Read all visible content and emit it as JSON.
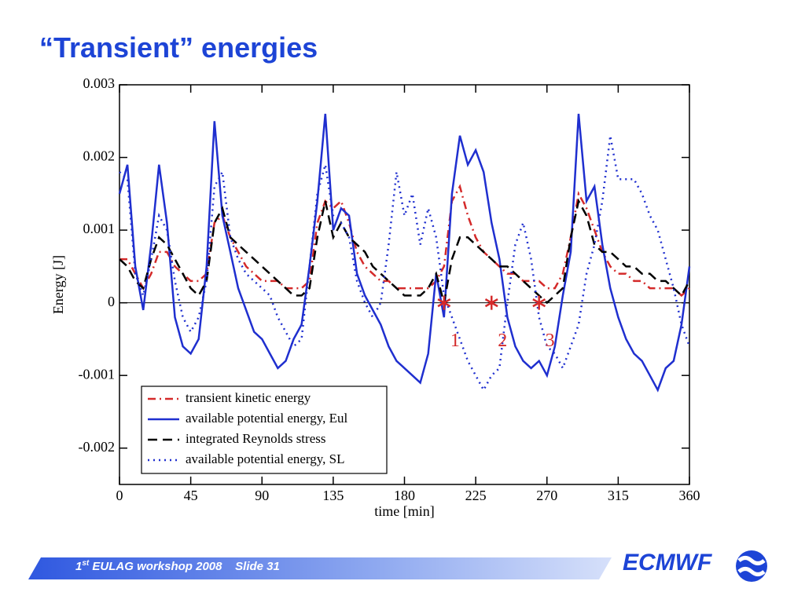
{
  "chart_data": {
    "type": "line",
    "title": "“Transient” energies",
    "xlabel": "time [min]",
    "ylabel": "Energy [J]",
    "xlim": [
      0,
      360
    ],
    "xticks": [
      0,
      45,
      90,
      135,
      180,
      225,
      270,
      315,
      360
    ],
    "ylim": [
      -0.0025,
      0.003
    ],
    "yticks": [
      -0.002,
      -0.001,
      0,
      0.001,
      0.002,
      0.003
    ],
    "zero_line": true,
    "legend": "lower left",
    "x": [
      0,
      5,
      10,
      15,
      20,
      25,
      30,
      35,
      40,
      45,
      50,
      55,
      60,
      65,
      70,
      75,
      80,
      85,
      90,
      95,
      100,
      105,
      110,
      115,
      120,
      125,
      130,
      135,
      140,
      145,
      150,
      155,
      160,
      165,
      170,
      175,
      180,
      185,
      190,
      195,
      200,
      205,
      210,
      215,
      220,
      225,
      230,
      235,
      240,
      245,
      250,
      255,
      260,
      265,
      270,
      275,
      280,
      285,
      290,
      295,
      300,
      305,
      310,
      315,
      320,
      325,
      330,
      335,
      340,
      345,
      350,
      355,
      360
    ],
    "series": [
      {
        "name": "transient kinetic energy",
        "color": "#d42a2a",
        "style": "dashdot",
        "values": [
          0.0006,
          0.0006,
          0.0004,
          0.0002,
          0.0004,
          0.0007,
          0.0007,
          0.0005,
          0.0004,
          0.0003,
          0.0003,
          0.0004,
          0.0011,
          0.0012,
          0.0009,
          0.0007,
          0.0005,
          0.0004,
          0.0003,
          0.0003,
          0.0003,
          0.0002,
          0.0002,
          0.0002,
          0.0003,
          0.0011,
          0.0014,
          0.0013,
          0.0014,
          0.0011,
          0.0007,
          0.0005,
          0.0004,
          0.0003,
          0.0003,
          0.0002,
          0.0002,
          0.0002,
          0.0002,
          0.0002,
          0.0003,
          0.0005,
          0.0014,
          0.0016,
          0.0012,
          0.0009,
          0.0007,
          0.0006,
          0.0005,
          0.0004,
          0.0004,
          0.0003,
          0.0003,
          0.0003,
          0.0002,
          0.0002,
          0.0004,
          0.0009,
          0.0015,
          0.0013,
          0.001,
          0.0007,
          0.0005,
          0.0004,
          0.0004,
          0.0003,
          0.0003,
          0.0002,
          0.0002,
          0.0002,
          0.0002,
          0.0001,
          0.0002
        ]
      },
      {
        "name": "available potential energy, Eul",
        "color": "#1f2fcf",
        "style": "solid",
        "values": [
          0.0015,
          0.0019,
          0.0005,
          -0.0001,
          0.0008,
          0.0019,
          0.0011,
          -0.0002,
          -0.0006,
          -0.0007,
          -0.0005,
          0.0005,
          0.0025,
          0.0012,
          0.0007,
          0.0002,
          -0.0001,
          -0.0004,
          -0.0005,
          -0.0007,
          -0.0009,
          -0.0008,
          -0.0005,
          -0.0003,
          0.0005,
          0.0014,
          0.0026,
          0.001,
          0.0013,
          0.0012,
          0.0004,
          0.0001,
          -0.0001,
          -0.0003,
          -0.0006,
          -0.0008,
          -0.0009,
          -0.001,
          -0.0011,
          -0.0007,
          0.0004,
          -0.0002,
          0.0015,
          0.0023,
          0.0019,
          0.0021,
          0.0018,
          0.0011,
          0.0006,
          -0.0002,
          -0.0006,
          -0.0008,
          -0.0009,
          -0.0008,
          -0.001,
          -0.0006,
          0.0001,
          0.0007,
          0.0026,
          0.0014,
          0.0016,
          0.0008,
          0.0002,
          -0.0002,
          -0.0005,
          -0.0007,
          -0.0008,
          -0.001,
          -0.0012,
          -0.0009,
          -0.0008,
          -0.0003,
          0.0005
        ]
      },
      {
        "name": "integrated Reynolds stress",
        "color": "#000000",
        "style": "dashed",
        "values": [
          0.0006,
          0.0005,
          0.0003,
          0.0002,
          0.0006,
          0.0009,
          0.0008,
          0.0006,
          0.0004,
          0.0002,
          0.0001,
          0.0003,
          0.0011,
          0.0013,
          0.0009,
          0.0008,
          0.0007,
          0.0006,
          0.0005,
          0.0004,
          0.0003,
          0.0002,
          0.0001,
          0.0001,
          0.0002,
          0.0009,
          0.0014,
          0.0009,
          0.0011,
          0.0009,
          0.0008,
          0.0007,
          0.0005,
          0.0004,
          0.0003,
          0.0002,
          0.0001,
          0.0001,
          0.0001,
          0.0002,
          0.0004,
          0,
          0.0006,
          0.0009,
          0.0009,
          0.0008,
          0.0007,
          0.0006,
          0.0005,
          0.0005,
          0.0004,
          0.0003,
          0.0002,
          0.0001,
          0,
          0.0001,
          0.0002,
          0.0009,
          0.0014,
          0.0012,
          0.0008,
          0.0007,
          0.0007,
          0.0006,
          0.0005,
          0.0005,
          0.0004,
          0.0004,
          0.0003,
          0.0003,
          0.0002,
          0.0001,
          0.0003
        ]
      },
      {
        "name": "available potential energy, SL",
        "color": "#1f2fcf",
        "style": "dotted",
        "values": [
          0.0018,
          0.0017,
          0.0004,
          0.0001,
          0.0006,
          0.0012,
          0.001,
          0.0003,
          -0.0002,
          -0.0004,
          -0.0002,
          0.0003,
          0.0016,
          0.0018,
          0.0009,
          0.0006,
          0.0004,
          0.0003,
          0.0002,
          0.0001,
          -0.0002,
          -0.0004,
          -0.0006,
          -0.0005,
          0.0005,
          0.0015,
          0.0019,
          0.0012,
          0.0011,
          0.0009,
          0.0003,
          0,
          -0.0002,
          0,
          0.0008,
          0.0018,
          0.0012,
          0.0015,
          0.0008,
          0.0013,
          0.0009,
          0.0001,
          -0.0002,
          -0.0005,
          -0.0008,
          -0.001,
          -0.0012,
          -0.001,
          -0.0009,
          0,
          0.0008,
          0.0011,
          0.0006,
          -0.0002,
          -0.0006,
          -0.0007,
          -0.0009,
          -0.0006,
          -0.0003,
          0.0004,
          0.0008,
          0.0014,
          0.0023,
          0.0017,
          0.0017,
          0.0017,
          0.0015,
          0.0012,
          0.001,
          0.0006,
          0.0002,
          -0.0003,
          -0.0006
        ]
      }
    ],
    "annotations": [
      {
        "text": "1",
        "x": 205,
        "y": 0,
        "color": "#d42a2a"
      },
      {
        "text": "2",
        "x": 235,
        "y": 0,
        "color": "#d42a2a"
      },
      {
        "text": "3",
        "x": 265,
        "y": 0,
        "color": "#d42a2a"
      }
    ]
  },
  "footer": {
    "ordinal": "1",
    "ordinal_suffix": "st",
    "event": "EULAG workshop 2008",
    "slide": "Slide 31",
    "logo": "ECMWF"
  }
}
